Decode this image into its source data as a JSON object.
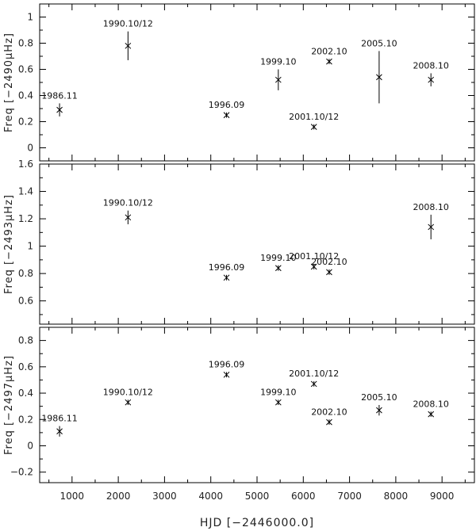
{
  "figure": {
    "xlabel": "HJD [−2446000.0]"
  },
  "chart_data": [
    {
      "type": "scatter",
      "ylabel": "Freq [−2490μHz]",
      "xlim": [
        300,
        9700
      ],
      "ylim": [
        -0.1,
        1.1
      ],
      "yticks": [
        0,
        0.2,
        0.4,
        0.6,
        0.8,
        1
      ],
      "yticklabels": [
        "0",
        "0.2",
        "0.4",
        "0.6",
        "0.8",
        "1"
      ],
      "points": [
        {
          "x": 730,
          "y": 0.29,
          "err": 0.05,
          "label": "1986.11"
        },
        {
          "x": 2210,
          "y": 0.78,
          "err": 0.11,
          "label": "1990.10/12"
        },
        {
          "x": 4340,
          "y": 0.25,
          "err": 0.02,
          "label": "1996.09"
        },
        {
          "x": 5460,
          "y": 0.52,
          "err": 0.08,
          "label": "1999.10"
        },
        {
          "x": 6230,
          "y": 0.16,
          "err": 0.02,
          "label": "2001.10/12"
        },
        {
          "x": 6560,
          "y": 0.66,
          "err": 0.02,
          "label": "2002.10"
        },
        {
          "x": 7640,
          "y": 0.54,
          "err": 0.2,
          "label": "2005.10"
        },
        {
          "x": 8760,
          "y": 0.52,
          "err": 0.05,
          "label": "2008.10"
        }
      ]
    },
    {
      "type": "scatter",
      "ylabel": "Freq [−2493μHz]",
      "xlim": [
        300,
        9700
      ],
      "ylim": [
        0.43,
        1.6
      ],
      "yticks": [
        0.6,
        0.8,
        1,
        1.2,
        1.4,
        1.6
      ],
      "yticklabels": [
        "0.6",
        "0.8",
        "1",
        "1.2",
        "1.4",
        "1.6"
      ],
      "points": [
        {
          "x": 2210,
          "y": 1.21,
          "err": 0.05,
          "label": "1990.10/12"
        },
        {
          "x": 4340,
          "y": 0.77,
          "err": 0.02,
          "label": "1996.09"
        },
        {
          "x": 5460,
          "y": 0.84,
          "err": 0.02,
          "label": "1999.10"
        },
        {
          "x": 6230,
          "y": 0.85,
          "err": 0.02,
          "label": "2001.10/12"
        },
        {
          "x": 6560,
          "y": 0.81,
          "err": 0.02,
          "label": "2002.10"
        },
        {
          "x": 8760,
          "y": 1.14,
          "err": 0.09,
          "label": "2008.10"
        }
      ]
    },
    {
      "type": "scatter",
      "ylabel": "Freq [−2497μHz]",
      "xlim": [
        300,
        9700
      ],
      "ylim": [
        -0.28,
        0.9
      ],
      "yticks": [
        -0.2,
        0,
        0.2,
        0.4,
        0.6,
        0.8
      ],
      "yticklabels": [
        "−0.2",
        "0",
        "0.2",
        "0.4",
        "0.6",
        "0.8"
      ],
      "xticks": [
        1000,
        2000,
        3000,
        4000,
        5000,
        6000,
        7000,
        8000,
        9000
      ],
      "xticklabels": [
        "1000",
        "2000",
        "3000",
        "4000",
        "5000",
        "6000",
        "7000",
        "8000",
        "9000"
      ],
      "points": [
        {
          "x": 730,
          "y": 0.11,
          "err": 0.04,
          "label": "1986.11"
        },
        {
          "x": 2210,
          "y": 0.33,
          "err": 0.02,
          "label": "1990.10/12"
        },
        {
          "x": 4340,
          "y": 0.54,
          "err": 0.02,
          "label": "1996.09"
        },
        {
          "x": 5460,
          "y": 0.33,
          "err": 0.02,
          "label": "1999.10"
        },
        {
          "x": 6230,
          "y": 0.47,
          "err": 0.02,
          "label": "2001.10/12"
        },
        {
          "x": 6560,
          "y": 0.18,
          "err": 0.02,
          "label": "2002.10"
        },
        {
          "x": 7640,
          "y": 0.27,
          "err": 0.04,
          "label": "2005.10"
        },
        {
          "x": 8760,
          "y": 0.24,
          "err": 0.02,
          "label": "2008.10"
        }
      ]
    }
  ]
}
